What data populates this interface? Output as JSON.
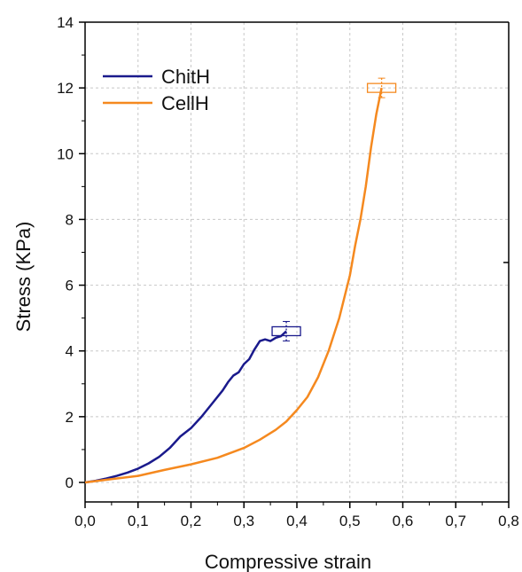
{
  "chart_data": {
    "type": "line",
    "xlabel": "Compressive strain",
    "ylabel": "Stress (KPa)",
    "xlim": [
      0,
      0.8
    ],
    "ylim": [
      -0.5,
      14
    ],
    "x_ticks": [
      0,
      0.1,
      0.2,
      0.3,
      0.4,
      0.5,
      0.6,
      0.7,
      0.8
    ],
    "x_tick_labels": [
      "0,0",
      "0,1",
      "0,2",
      "0,3",
      "0,4",
      "0,5",
      "0,6",
      "0,7",
      "0,8"
    ],
    "y_ticks": [
      0,
      2,
      4,
      6,
      8,
      10,
      12,
      14
    ],
    "y_tick_labels": [
      "0",
      "2",
      "4",
      "6",
      "8",
      "10",
      "12",
      "14"
    ],
    "grid": true,
    "legend_position": "top-left",
    "series": [
      {
        "name": "ChitH",
        "color": "#1a1a8c",
        "x": [
          0,
          0.02,
          0.04,
          0.06,
          0.08,
          0.1,
          0.12,
          0.14,
          0.16,
          0.18,
          0.2,
          0.22,
          0.24,
          0.26,
          0.27,
          0.28,
          0.29,
          0.3,
          0.31,
          0.32,
          0.33,
          0.34,
          0.35,
          0.36,
          0.37,
          0.38
        ],
        "y": [
          0,
          0.05,
          0.12,
          0.2,
          0.3,
          0.42,
          0.58,
          0.78,
          1.05,
          1.4,
          1.65,
          2.0,
          2.4,
          2.8,
          3.05,
          3.25,
          3.35,
          3.6,
          3.75,
          4.05,
          4.3,
          4.35,
          4.3,
          4.4,
          4.45,
          4.6
        ]
      },
      {
        "name": "CellH",
        "color": "#f5891f",
        "x": [
          0,
          0.05,
          0.1,
          0.15,
          0.2,
          0.25,
          0.3,
          0.33,
          0.36,
          0.38,
          0.4,
          0.42,
          0.44,
          0.46,
          0.48,
          0.5,
          0.51,
          0.52,
          0.53,
          0.54,
          0.55,
          0.56
        ],
        "y": [
          0,
          0.1,
          0.2,
          0.38,
          0.55,
          0.75,
          1.05,
          1.3,
          1.6,
          1.85,
          2.2,
          2.6,
          3.2,
          4.0,
          5.0,
          6.3,
          7.2,
          8.0,
          9.0,
          10.2,
          11.2,
          12.0
        ]
      }
    ],
    "failure_markers": [
      {
        "series": "ChitH",
        "x": 0.38,
        "y": 4.6
      },
      {
        "series": "CellH",
        "x": 0.56,
        "y": 12.0
      }
    ]
  }
}
